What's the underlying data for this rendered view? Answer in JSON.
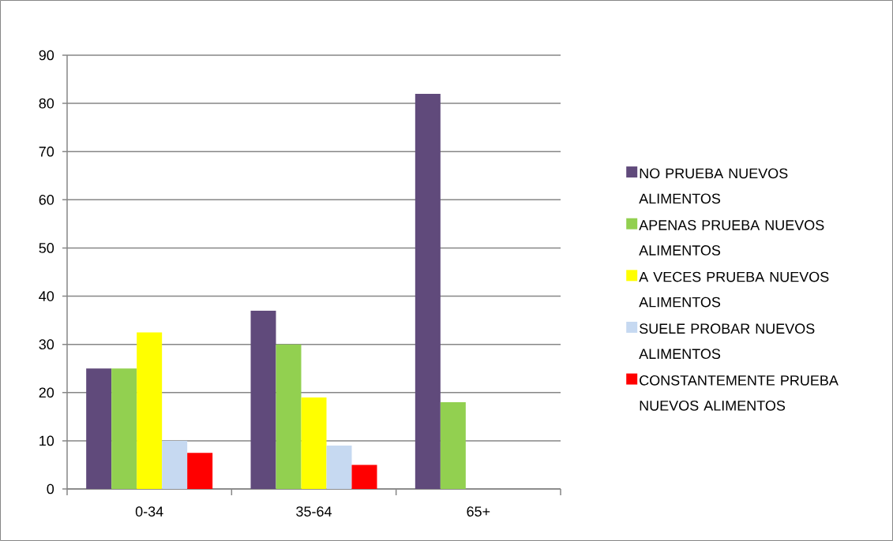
{
  "chart_data": {
    "type": "bar",
    "categories": [
      "0-34",
      "35-64",
      "65+"
    ],
    "series": [
      {
        "name": "NO PRUEBA NUEVOS ALIMENTOS",
        "color": "#604a7b",
        "values": [
          25,
          37,
          82
        ]
      },
      {
        "name": "APENAS PRUEBA NUEVOS ALIMENTOS",
        "color": "#92d050",
        "values": [
          25,
          30,
          18
        ]
      },
      {
        "name": "A VECES PRUEBA NUEVOS ALIMENTOS",
        "color": "#ffff00",
        "values": [
          32.5,
          19,
          0
        ]
      },
      {
        "name": "SUELE PROBAR NUEVOS ALIMENTOS",
        "color": "#c6d9f1",
        "values": [
          10,
          9,
          0
        ]
      },
      {
        "name": "CONSTANTEMENTE PRUEBA NUEVOS ALIMENTOS",
        "color": "#ff0000",
        "values": [
          7.5,
          5,
          0
        ]
      }
    ],
    "ylim": [
      0,
      90
    ],
    "yticks": [
      0,
      10,
      20,
      30,
      40,
      50,
      60,
      70,
      80,
      90
    ],
    "grid": "y",
    "legend": "right"
  }
}
